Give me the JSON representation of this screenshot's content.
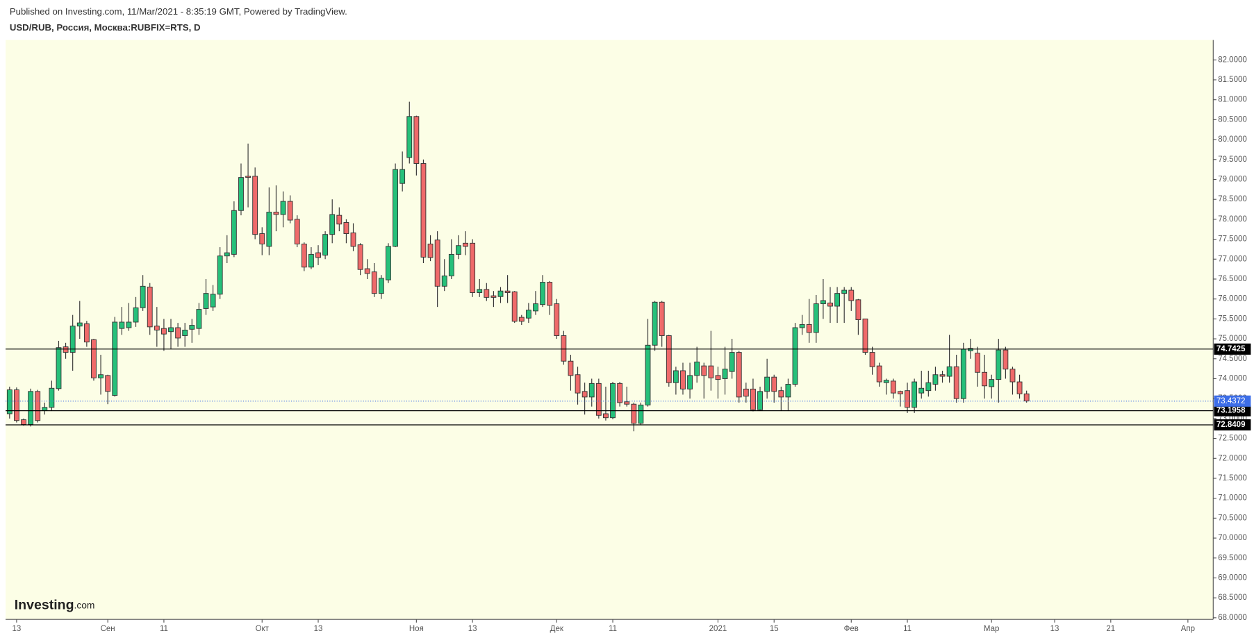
{
  "chart_data": {
    "type": "candlestick",
    "published": "Published on Investing.com, 11/Mar/2021 - 8:35:19 GMT, Powered by TradingView.",
    "title": "USD/RUB, Россия, Москва:RUBFIX=RTS, D",
    "logo": "Investing",
    "logo_suffix": ".com",
    "up_color": "#26c07a",
    "down_color": "#ef6a6a",
    "level_color": "#000000",
    "last_color": "#3d6ee8",
    "ylim": [
      67.96,
      82.5
    ],
    "yticks": [
      {
        "value": 68,
        "label": "68.0000"
      },
      {
        "value": 68.5,
        "label": "68.5000"
      },
      {
        "value": 69,
        "label": "69.0000"
      },
      {
        "value": 69.5,
        "label": "69.5000"
      },
      {
        "value": 70,
        "label": "70.0000"
      },
      {
        "value": 70.5,
        "label": "70.5000"
      },
      {
        "value": 71,
        "label": "71.0000"
      },
      {
        "value": 71.5,
        "label": "71.5000"
      },
      {
        "value": 72,
        "label": "72.0000"
      },
      {
        "value": 72.5,
        "label": "72.5000"
      },
      {
        "value": 73,
        "label": "73.0000"
      },
      {
        "value": 73.5,
        "label": "73.5000"
      },
      {
        "value": 74,
        "label": "74.0000"
      },
      {
        "value": 74.5,
        "label": "74.5000"
      },
      {
        "value": 75,
        "label": "75.0000"
      },
      {
        "value": 75.5,
        "label": "75.5000"
      },
      {
        "value": 76,
        "label": "76.0000"
      },
      {
        "value": 76.5,
        "label": "76.5000"
      },
      {
        "value": 77,
        "label": "77.0000"
      },
      {
        "value": 77.5,
        "label": "77.5000"
      },
      {
        "value": 78,
        "label": "78.0000"
      },
      {
        "value": 78.5,
        "label": "78.5000"
      },
      {
        "value": 79,
        "label": "79.0000"
      },
      {
        "value": 79.5,
        "label": "79.5000"
      },
      {
        "value": 80,
        "label": "80.0000"
      },
      {
        "value": 80.5,
        "label": "80.5000"
      },
      {
        "value": 81,
        "label": "81.0000"
      },
      {
        "value": 81.5,
        "label": "81.5000"
      },
      {
        "value": 82,
        "label": "82.0000"
      }
    ],
    "levels": [
      74.7425,
      73.1958,
      72.8409
    ],
    "last_price": 73.4372,
    "categories": [
      null,
      "13",
      null,
      null,
      null,
      null,
      null,
      null,
      null,
      null,
      null,
      null,
      null,
      null,
      "Сен",
      null,
      null,
      null,
      null,
      null,
      null,
      null,
      "11",
      null,
      null,
      null,
      null,
      null,
      null,
      null,
      null,
      null,
      null,
      null,
      null,
      null,
      "Окт",
      null,
      null,
      null,
      null,
      null,
      null,
      null,
      "13",
      null,
      null,
      null,
      null,
      null,
      null,
      null,
      null,
      null,
      null,
      null,
      null,
      null,
      "Ноя",
      null,
      null,
      null,
      null,
      null,
      null,
      null,
      "13",
      null,
      null,
      null,
      null,
      null,
      null,
      null,
      null,
      null,
      null,
      null,
      "Дек",
      null,
      null,
      null,
      null,
      null,
      null,
      null,
      "11",
      null,
      null,
      null,
      null,
      null,
      null,
      null,
      null,
      null,
      null,
      null,
      null,
      null,
      null,
      "2021",
      null,
      null,
      null,
      null,
      null,
      null,
      null,
      "15",
      null,
      null,
      null,
      null,
      null,
      null,
      null,
      null,
      null,
      null,
      "Фев",
      null,
      null,
      null,
      null,
      null,
      null,
      null,
      "11",
      null,
      null,
      null,
      null,
      null,
      null,
      null,
      null,
      null,
      null,
      null,
      "Мар",
      null,
      null,
      null,
      null,
      null,
      null,
      null,
      null,
      "13",
      null,
      null,
      null,
      null,
      null,
      null,
      null,
      "21",
      null,
      null,
      null,
      null,
      null,
      null,
      null,
      null,
      null,
      null,
      "Апр"
    ],
    "open": [
      73.12,
      73.72,
      72.97,
      72.85,
      73.68,
      73.2,
      73.28,
      73.75,
      74.8,
      74.66,
      75.32,
      75.38,
      74.98,
      74.02,
      74.08,
      73.58,
      75.26,
      75.28,
      75.42,
      75.78,
      76.3,
      75.32,
      75.26,
      75.18,
      75.28,
      75.08,
      75.24,
      75.26,
      75.76,
      75.8,
      76.12,
      77.08,
      77.12,
      78.22,
      79.08,
      79.08,
      77.64,
      77.32,
      78.18,
      78.12,
      78.45,
      78.0,
      77.38,
      76.8,
      77.16,
      77.1,
      77.62,
      78.1,
      77.92,
      77.66,
      77.36,
      76.76,
      76.68,
      76.14,
      76.48,
      77.32,
      78.9,
      79.55,
      80.58,
      79.4,
      77.38,
      77.48,
      76.32,
      76.58,
      77.12,
      77.4,
      77.4,
      76.16,
      76.24,
      76.08,
      76.06,
      76.2,
      76.18,
      75.54,
      75.52,
      75.7,
      75.86,
      76.42,
      75.88,
      75.08,
      74.44,
      74.1,
      73.68,
      73.54,
      73.88,
      73.12,
      73.02,
      73.88,
      73.42,
      73.36,
      72.88,
      73.34,
      74.84,
      75.92,
      75.08,
      73.9,
      74.2,
      73.74,
      74.08,
      74.32,
      74.32,
      74.08,
      74.0,
      74.18,
      74.66,
      73.74,
      73.74,
      73.22,
      73.68,
      74.04,
      73.7,
      73.54,
      73.86,
      75.28,
      75.36,
      75.16,
      75.88,
      75.9,
      75.82,
      76.14,
      76.22,
      75.98,
      75.5,
      74.66,
      74.32,
      73.9,
      73.94,
      73.68,
      73.7,
      73.28,
      73.64,
      73.7,
      73.86,
      74.1,
      74.06,
      74.3,
      73.5,
      74.7,
      74.64,
      74.16,
      73.8,
      73.98,
      74.72,
      74.24,
      73.92,
      73.62,
      null,
      null,
      null,
      null,
      null,
      null,
      null,
      null,
      null,
      null,
      null,
      null,
      null,
      null,
      null,
      null,
      null,
      null,
      null,
      null,
      null,
      null,
      null
    ],
    "high": [
      73.8,
      73.78,
      73.0,
      73.75,
      73.72,
      73.4,
      73.95,
      74.95,
      74.9,
      75.6,
      75.95,
      75.45,
      75.0,
      74.6,
      74.1,
      75.55,
      75.8,
      75.9,
      76.05,
      76.6,
      76.4,
      75.8,
      75.5,
      75.5,
      75.4,
      75.4,
      75.5,
      75.9,
      76.5,
      76.35,
      77.3,
      77.6,
      78.45,
      79.4,
      79.9,
      79.3,
      77.8,
      78.8,
      78.85,
      78.7,
      78.6,
      78.1,
      77.42,
      77.3,
      77.35,
      77.7,
      78.5,
      78.3,
      78.0,
      77.9,
      77.4,
      77.0,
      76.9,
      76.6,
      77.4,
      79.4,
      79.7,
      80.95,
      80.6,
      79.5,
      77.6,
      77.7,
      77.0,
      77.5,
      77.6,
      77.7,
      77.5,
      76.5,
      76.4,
      76.2,
      76.3,
      76.6,
      76.2,
      75.6,
      75.9,
      76.2,
      76.6,
      76.45,
      76.0,
      75.2,
      74.6,
      74.3,
      73.9,
      74.0,
      74.0,
      73.8,
      73.92,
      73.92,
      73.8,
      73.4,
      73.4,
      75.5,
      75.95,
      75.95,
      75.1,
      74.3,
      74.4,
      74.4,
      74.8,
      74.4,
      75.2,
      74.3,
      74.8,
      75.0,
      74.7,
      73.9,
      74.0,
      73.8,
      74.5,
      74.1,
      73.8,
      74.0,
      75.4,
      75.6,
      76.0,
      76.1,
      76.5,
      76.3,
      76.3,
      76.3,
      76.3,
      76.0,
      75.5,
      74.8,
      74.4,
      74.0,
      74.0,
      73.7,
      73.9,
      74.0,
      74.2,
      74.2,
      74.3,
      74.2,
      75.1,
      74.6,
      74.9,
      75.0,
      74.8,
      74.6,
      74.1,
      75.0,
      74.8,
      74.3,
      74.1,
      73.7,
      null,
      null,
      null,
      null,
      null,
      null,
      null,
      null,
      null,
      null,
      null,
      null,
      null,
      null,
      null,
      null,
      null,
      null,
      null,
      null,
      null,
      null,
      null
    ],
    "low": [
      73.0,
      72.9,
      72.82,
      72.8,
      72.9,
      73.1,
      73.2,
      73.7,
      74.5,
      74.2,
      75.0,
      74.8,
      73.95,
      73.6,
      73.36,
      73.55,
      75.1,
      75.2,
      75.3,
      75.7,
      75.1,
      74.8,
      74.7,
      74.75,
      74.8,
      74.8,
      74.9,
      75.1,
      75.6,
      75.7,
      76.0,
      76.9,
      77.05,
      78.1,
      78.3,
      77.5,
      77.1,
      77.1,
      77.7,
      77.8,
      77.9,
      77.3,
      76.7,
      76.75,
      76.85,
      77.0,
      77.4,
      77.7,
      77.4,
      77.2,
      76.6,
      76.5,
      76.05,
      76.0,
      76.4,
      77.3,
      78.7,
      79.4,
      79.1,
      76.9,
      76.95,
      75.8,
      76.2,
      76.5,
      77.0,
      77.1,
      76.05,
      76.05,
      75.95,
      75.8,
      75.9,
      75.9,
      75.4,
      75.35,
      75.4,
      75.6,
      75.8,
      75.6,
      75.0,
      74.35,
      73.7,
      73.35,
      73.1,
      73.3,
      73.0,
      72.95,
      72.98,
      73.3,
      73.3,
      72.68,
      72.85,
      73.3,
      74.7,
      74.8,
      73.8,
      73.6,
      73.6,
      73.5,
      73.9,
      73.5,
      73.7,
      73.5,
      73.6,
      74.0,
      73.4,
      73.4,
      73.18,
      73.2,
      73.5,
      73.4,
      73.2,
      73.2,
      73.8,
      75.1,
      74.9,
      74.9,
      75.5,
      75.4,
      75.4,
      75.4,
      75.7,
      75.1,
      74.6,
      74.1,
      73.8,
      73.6,
      73.5,
      73.3,
      73.14,
      73.14,
      73.5,
      73.55,
      73.7,
      73.9,
      73.9,
      73.4,
      73.4,
      74.5,
      73.8,
      73.5,
      73.5,
      73.4,
      74.0,
      73.6,
      73.5,
      73.4,
      null,
      null,
      null,
      null,
      null,
      null,
      null,
      null,
      null,
      null,
      null,
      null,
      null,
      null,
      null,
      null,
      null,
      null,
      null,
      null,
      null,
      null,
      null
    ],
    "close": [
      73.72,
      72.95,
      72.85,
      73.68,
      72.95,
      73.28,
      73.76,
      74.78,
      74.66,
      75.32,
      75.4,
      74.92,
      74.02,
      74.1,
      73.68,
      75.42,
      75.42,
      75.42,
      75.78,
      76.32,
      75.3,
      75.22,
      75.12,
      75.28,
      75.02,
      75.22,
      75.34,
      75.74,
      76.14,
      76.12,
      77.08,
      77.16,
      78.22,
      79.05,
      79.05,
      77.62,
      77.38,
      78.18,
      78.12,
      78.45,
      77.98,
      77.38,
      76.8,
      77.12,
      77.04,
      77.62,
      78.12,
      77.88,
      77.64,
      77.32,
      76.74,
      76.64,
      76.14,
      76.52,
      77.32,
      79.25,
      79.25,
      80.58,
      79.4,
      77.05,
      77.04,
      76.32,
      76.58,
      77.12,
      77.34,
      77.32,
      76.16,
      76.24,
      76.04,
      76.04,
      76.2,
      76.16,
      75.44,
      75.44,
      75.72,
      75.88,
      76.42,
      75.84,
      75.08,
      74.44,
      74.08,
      73.64,
      73.54,
      73.88,
      73.08,
      73.02,
      73.88,
      73.4,
      73.36,
      72.88,
      73.34,
      74.84,
      75.92,
      75.08,
      73.9,
      74.2,
      73.74,
      74.08,
      74.42,
      74.08,
      74.02,
      73.98,
      74.24,
      74.66,
      73.54,
      73.56,
      73.22,
      73.68,
      74.04,
      73.68,
      73.54,
      73.86,
      75.28,
      75.36,
      75.16,
      75.88,
      75.96,
      75.82,
      76.14,
      76.22,
      75.96,
      75.48,
      74.66,
      74.3,
      73.92,
      73.96,
      73.64,
      73.62,
      73.28,
      73.92,
      73.76,
      73.9,
      74.1,
      74.06,
      74.3,
      73.5,
      74.74,
      74.76,
      74.16,
      73.82,
      73.98,
      74.72,
      74.24,
      73.92,
      73.62,
      73.44,
      null,
      null,
      null,
      null,
      null,
      null,
      null,
      null,
      null,
      null,
      null,
      null,
      null,
      null,
      null,
      null,
      null,
      null,
      null,
      null,
      null,
      null,
      null
    ]
  }
}
